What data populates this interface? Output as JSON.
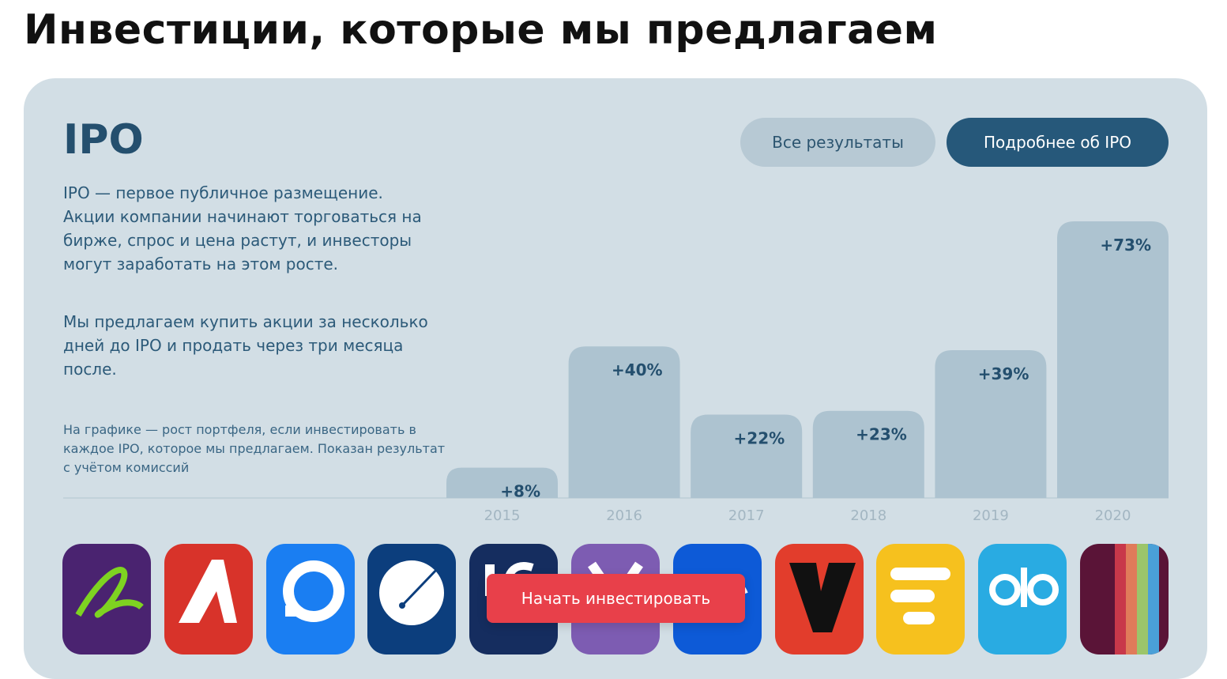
{
  "page": {
    "title": "Инвестиции, которые мы предлагаем"
  },
  "card": {
    "heading": "IPO",
    "desc_1": "IPO — первое публичное размещение. Акции компании начинают торговаться на бирже, спрос и цена растут, и инвесторы могут заработать на этом росте.",
    "desc_2": "Мы предлагаем купить акции за несколько дней до IPO и продать через три месяца после.",
    "note": "На графике — рост портфеля, если инвестировать в каждое IPO, которое мы предлагаем. Показан результат с учётом комиссий",
    "btn_all": "Все результаты",
    "btn_more": "Подробнее об IPO",
    "cta": "Начать инвестировать"
  },
  "chart_data": {
    "type": "bar",
    "title": "",
    "xlabel": "",
    "ylabel": "",
    "categories": [
      "2015",
      "2016",
      "2017",
      "2018",
      "2019",
      "2020"
    ],
    "values": [
      8,
      40,
      22,
      23,
      39,
      73
    ],
    "value_labels": [
      "+8%",
      "+40%",
      "+22%",
      "+23%",
      "+39%",
      "+73%"
    ],
    "ylim": [
      0,
      73
    ],
    "grid": false,
    "bar_color": "#adc3d0"
  },
  "logos": [
    {
      "name": "logo-1-icon",
      "color": "#4a2370"
    },
    {
      "name": "logo-2-icon",
      "color": "#d8332a"
    },
    {
      "name": "logo-3-icon",
      "color": "#1a7ef2"
    },
    {
      "name": "logo-4-icon",
      "color": "#0c3e7d"
    },
    {
      "name": "logo-5-icon",
      "color": "#152d5f"
    },
    {
      "name": "logo-6-icon",
      "color": "#7d5cb2"
    },
    {
      "name": "logo-7-icon",
      "color": "#0d5ad7"
    },
    {
      "name": "logo-8-icon",
      "color": "#e23d2c"
    },
    {
      "name": "logo-9-icon",
      "color": "#f6c11e"
    },
    {
      "name": "logo-10-icon",
      "color": "#29abe2"
    },
    {
      "name": "logo-11-icon",
      "color": "#5a1437"
    }
  ]
}
